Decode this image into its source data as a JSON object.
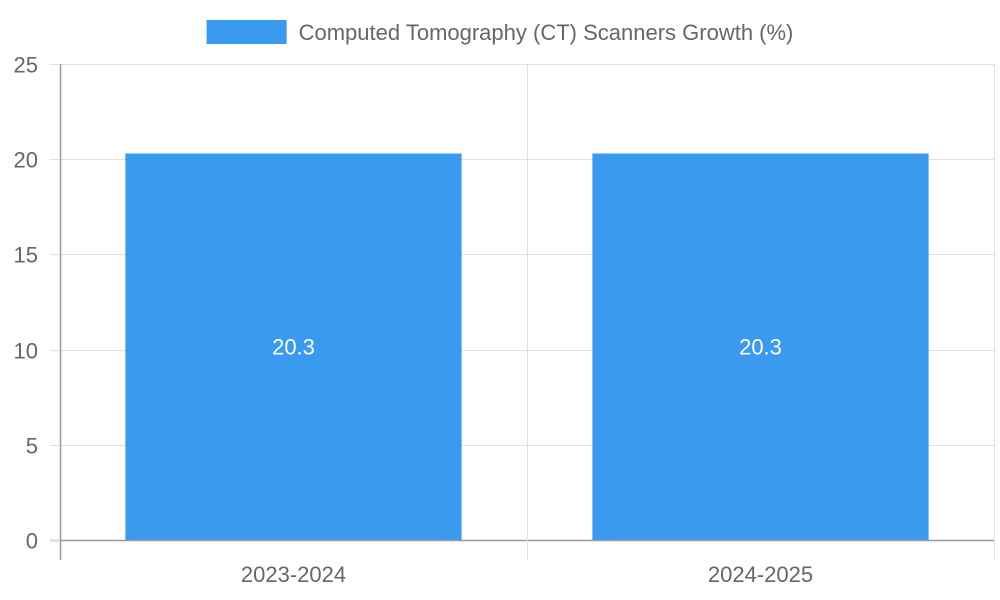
{
  "chart_data": {
    "type": "bar",
    "categories": [
      "2023-2024",
      "2024-2025"
    ],
    "series": [
      {
        "name": "Computed Tomography (CT) Scanners Growth (%)",
        "values": [
          20.3,
          20.3
        ],
        "color": "#3a9af0"
      }
    ],
    "value_labels": [
      "20.3",
      "20.3"
    ],
    "ylim": [
      0,
      25
    ],
    "y_ticks": [
      0,
      5,
      10,
      15,
      20,
      25
    ],
    "title": "",
    "xlabel": "",
    "ylabel": "",
    "grid": true,
    "legend_position": "top-center"
  },
  "colors": {
    "grid": "#e0e0e0",
    "axis": "#999999",
    "text": "#666666",
    "label": "#ffffff"
  }
}
